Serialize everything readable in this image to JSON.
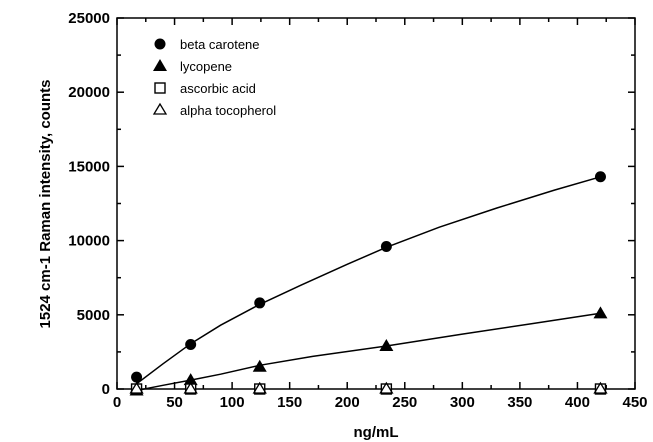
{
  "chart_data": {
    "type": "scatter",
    "xlabel": "ng/mL",
    "ylabel": "1524 cm-1 Raman intensity, counts",
    "xlim": [
      0,
      450
    ],
    "ylim": [
      0,
      25000
    ],
    "xticks": [
      0,
      50,
      100,
      150,
      200,
      250,
      300,
      350,
      400,
      450
    ],
    "yticks": [
      0,
      5000,
      10000,
      15000,
      20000,
      25000
    ],
    "grid": false,
    "legend": "top-left",
    "series": [
      {
        "name": "beta carotene",
        "marker": "filled-circle",
        "fit_curve": true,
        "x": [
          17,
          64,
          124,
          234,
          420
        ],
        "y": [
          800,
          3000,
          5800,
          9600,
          14300
        ],
        "fit": [
          [
            17,
            350
          ],
          [
            40,
            1700
          ],
          [
            64,
            3050
          ],
          [
            90,
            4300
          ],
          [
            124,
            5700
          ],
          [
            160,
            7000
          ],
          [
            200,
            8400
          ],
          [
            234,
            9550
          ],
          [
            280,
            10900
          ],
          [
            330,
            12200
          ],
          [
            380,
            13400
          ],
          [
            420,
            14300
          ]
        ]
      },
      {
        "name": "lycopene",
        "marker": "filled-triangle",
        "fit_curve": true,
        "x": [
          17,
          64,
          124,
          234,
          420
        ],
        "y": [
          -100,
          600,
          1500,
          2900,
          5100
        ],
        "fit": [
          [
            17,
            -100
          ],
          [
            40,
            250
          ],
          [
            64,
            600
          ],
          [
            90,
            1000
          ],
          [
            124,
            1600
          ],
          [
            170,
            2200
          ],
          [
            234,
            2900
          ],
          [
            300,
            3700
          ],
          [
            360,
            4400
          ],
          [
            420,
            5100
          ]
        ]
      },
      {
        "name": "ascorbic acid",
        "marker": "open-square",
        "fit_curve": false,
        "x": [
          17,
          64,
          124,
          234,
          420
        ],
        "y": [
          0,
          0,
          0,
          0,
          0
        ]
      },
      {
        "name": "alpha tocopherol",
        "marker": "open-triangle",
        "fit_curve": false,
        "x": [
          17,
          64,
          124,
          234,
          420
        ],
        "y": [
          0,
          0,
          0,
          0,
          0
        ]
      }
    ]
  }
}
